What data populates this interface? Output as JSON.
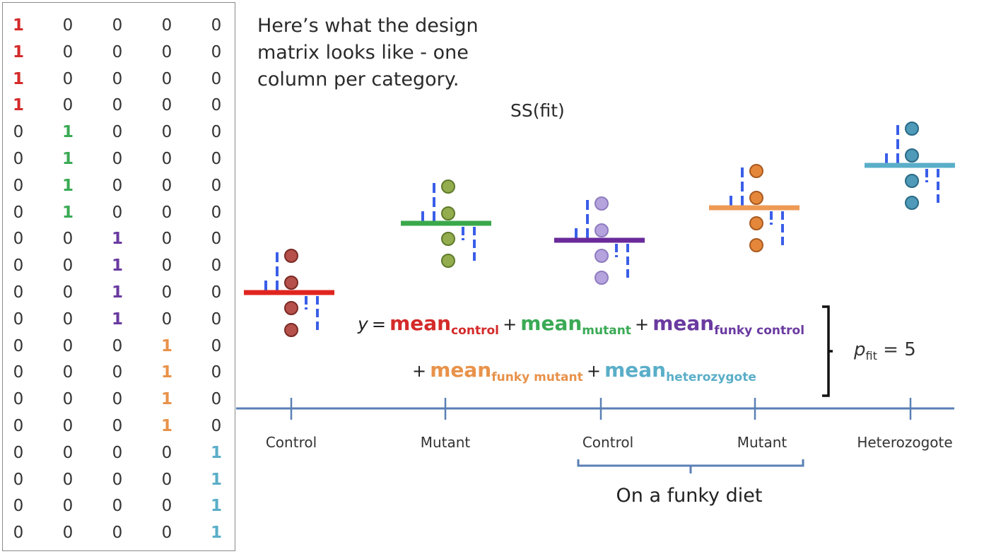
{
  "design_matrix": {
    "columns": [
      "control",
      "mutant",
      "funky control",
      "funky mutant",
      "heterozygote"
    ],
    "column_colors": [
      "#d42a2a",
      "#3aaa55",
      "#6a3aa0",
      "#e8924a",
      "#5aaec8"
    ],
    "rows": [
      [
        1,
        0,
        0,
        0,
        0
      ],
      [
        1,
        0,
        0,
        0,
        0
      ],
      [
        1,
        0,
        0,
        0,
        0
      ],
      [
        1,
        0,
        0,
        0,
        0
      ],
      [
        0,
        1,
        0,
        0,
        0
      ],
      [
        0,
        1,
        0,
        0,
        0
      ],
      [
        0,
        1,
        0,
        0,
        0
      ],
      [
        0,
        1,
        0,
        0,
        0
      ],
      [
        0,
        0,
        1,
        0,
        0
      ],
      [
        0,
        0,
        1,
        0,
        0
      ],
      [
        0,
        0,
        1,
        0,
        0
      ],
      [
        0,
        0,
        1,
        0,
        0
      ],
      [
        0,
        0,
        0,
        1,
        0
      ],
      [
        0,
        0,
        0,
        1,
        0
      ],
      [
        0,
        0,
        0,
        1,
        0
      ],
      [
        0,
        0,
        0,
        1,
        0
      ],
      [
        0,
        0,
        0,
        0,
        1
      ],
      [
        0,
        0,
        0,
        0,
        1
      ],
      [
        0,
        0,
        0,
        0,
        1
      ],
      [
        0,
        0,
        0,
        0,
        1
      ]
    ]
  },
  "intro_text": "Here’s what the design matrix looks like - one column per category.",
  "ss_label": "SS(fit)",
  "groups": [
    {
      "name": "Control",
      "mean_color": "#e0241f",
      "point_fill": "#b5504a",
      "point_stroke": "#7a2a25",
      "mean_level": 0.0
    },
    {
      "name": "Mutant",
      "mean_color": "#3aa84a",
      "point_fill": "#93ad4e",
      "point_stroke": "#5f7a2a",
      "mean_level": 0.98
    },
    {
      "name": "Control",
      "mean_color": "#6a2a9a",
      "point_fill": "#b5a3dd",
      "point_stroke": "#8f7cc0",
      "mean_level": 0.74
    },
    {
      "name": "Mutant",
      "mean_color": "#ee9a55",
      "point_fill": "#e5873a",
      "point_stroke": "#a85a20",
      "mean_level": 1.2
    },
    {
      "name": "Heterozogote",
      "mean_color": "#5aaec8",
      "point_fill": "#4e9ab8",
      "point_stroke": "#2a6a85",
      "mean_level": 1.8
    }
  ],
  "residual_color": "#3a5ee8",
  "axis_color": "#5a7fb5",
  "equation": {
    "lhs": "y",
    "equals": "=",
    "plus": "+",
    "term_word": "mean",
    "line1": [
      {
        "sub": "control",
        "color": "#d42a2a"
      },
      {
        "sub": "mutant",
        "color": "#3aaa55"
      },
      {
        "sub": "funky control",
        "color": "#6a3aa0"
      }
    ],
    "line2": [
      {
        "sub": "funky mutant",
        "color": "#e8924a"
      },
      {
        "sub": "heterozygote",
        "color": "#5aaec8"
      }
    ]
  },
  "pfit": {
    "symbol": "p",
    "sub": "fit",
    "rest": " = 5"
  },
  "axis_labels": [
    "Control",
    "Mutant",
    "Control",
    "Mutant",
    "Heterozogote"
  ],
  "diet_label": "On a funky diet"
}
